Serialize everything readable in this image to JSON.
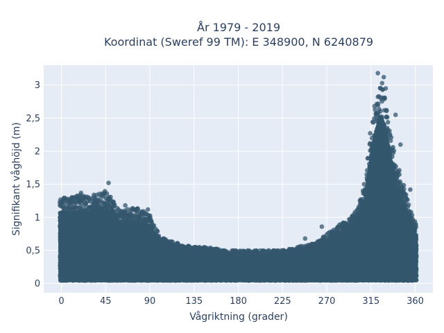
{
  "chart_data": {
    "type": "scatter",
    "title_line1": "År 1979 - 2019",
    "title_line2": "Koordinat (Sweref 99 TM): E 348900, N 6240879",
    "xlabel": "Vågriktning (grader)",
    "ylabel": "Signifikant våghöjd (m)",
    "xlim": [
      -18,
      378
    ],
    "ylim": [
      -0.14,
      3.3
    ],
    "x_ticks": [
      0,
      45,
      90,
      135,
      180,
      225,
      270,
      315,
      360
    ],
    "x_tick_labels": [
      "0",
      "45",
      "90",
      "135",
      "180",
      "225",
      "270",
      "315",
      "360"
    ],
    "y_ticks": [
      0,
      0.5,
      1,
      1.5,
      2,
      2.5,
      3
    ],
    "y_tick_labels": [
      "0",
      "0,5",
      "1",
      "1,5",
      "2",
      "2,5",
      "3"
    ],
    "grid": true,
    "plot_background": "#e5ecf6",
    "marker_color": "#34576d",
    "envelope": {
      "x": [
        0,
        10,
        20,
        30,
        45,
        60,
        75,
        90,
        100,
        110,
        120,
        135,
        150,
        165,
        180,
        195,
        210,
        225,
        240,
        255,
        270,
        285,
        300,
        310,
        315,
        320,
        325,
        330,
        335,
        340,
        350,
        360
      ],
      "y_max": [
        1.3,
        1.3,
        1.35,
        1.3,
        1.4,
        1.1,
        1.15,
        1.05,
        0.7,
        0.65,
        0.6,
        0.55,
        0.55,
        0.5,
        0.5,
        0.5,
        0.5,
        0.5,
        0.55,
        0.6,
        0.75,
        0.9,
        1.1,
        1.6,
        2.3,
        2.8,
        3.1,
        2.8,
        2.3,
        1.9,
        1.4,
        0.9
      ]
    },
    "outliers": [
      {
        "x": 48,
        "y": 1.52
      },
      {
        "x": 322,
        "y": 3.18
      },
      {
        "x": 328,
        "y": 3.12
      },
      {
        "x": 330,
        "y": 2.95
      },
      {
        "x": 340,
        "y": 2.55
      },
      {
        "x": 345,
        "y": 2.1
      },
      {
        "x": 355,
        "y": 1.42
      },
      {
        "x": 20,
        "y": 1.37
      },
      {
        "x": 33,
        "y": 1.34
      },
      {
        "x": 65,
        "y": 1.18
      },
      {
        "x": 88,
        "y": 1.12
      },
      {
        "x": 248,
        "y": 0.68
      },
      {
        "x": 265,
        "y": 0.86
      },
      {
        "x": 283,
        "y": 0.89
      },
      {
        "x": 298,
        "y": 1.02
      }
    ]
  }
}
